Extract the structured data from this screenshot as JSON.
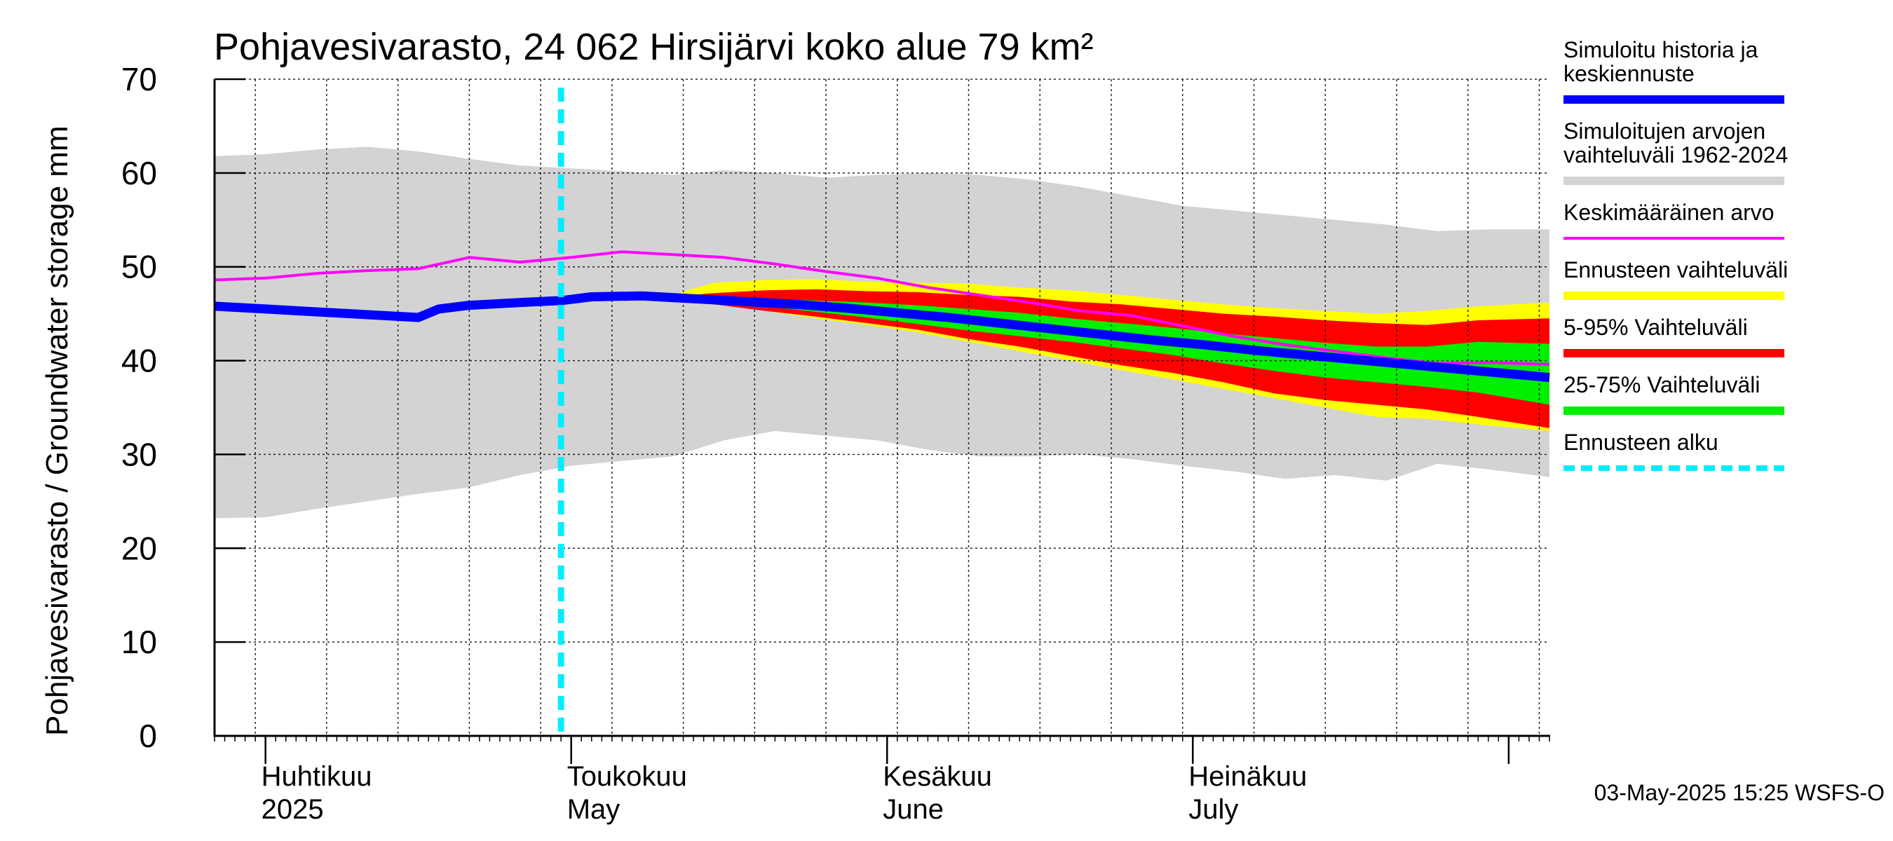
{
  "chart_data": {
    "type": "area",
    "title": "Pohjavesivarasto, 24 062 Hirsijärvi koko alue 79 km²",
    "ylabel": "Pohjavesivarasto / Groundwater storage   mm",
    "xlabel": "",
    "ylim": [
      0,
      70
    ],
    "y_ticks": [
      "0",
      "10",
      "20",
      "30",
      "40",
      "50",
      "60",
      "70"
    ],
    "x_range": [
      "2025-03-27",
      "2025-08-05"
    ],
    "grid": true,
    "legend_position": "right",
    "month_labels": [
      {
        "date": "2025-04-01",
        "fi": "Huhtikuu",
        "en": "2025"
      },
      {
        "date": "2025-05-01",
        "fi": "Toukokuu",
        "en": "May"
      },
      {
        "date": "2025-06-01",
        "fi": "Kesäkuu",
        "en": "June"
      },
      {
        "date": "2025-07-01",
        "fi": "Heinäkuu",
        "en": "July"
      }
    ],
    "forecast_start": "2025-04-30",
    "series": [
      {
        "name": "Simuloitujen arvojen vaihteluväli 1962-2024",
        "kind": "band",
        "color": "#d3d3d3",
        "x": [
          "2025-03-27",
          "2025-04-01",
          "2025-04-06",
          "2025-04-11",
          "2025-04-16",
          "2025-04-21",
          "2025-04-26",
          "2025-05-01",
          "2025-05-06",
          "2025-05-11",
          "2025-05-16",
          "2025-05-21",
          "2025-05-26",
          "2025-05-31",
          "2025-06-05",
          "2025-06-10",
          "2025-06-15",
          "2025-06-20",
          "2025-06-25",
          "2025-06-30",
          "2025-07-05",
          "2025-07-10",
          "2025-07-15",
          "2025-07-20",
          "2025-07-25",
          "2025-07-30",
          "2025-08-05"
        ],
        "lower": [
          23.2,
          23.3,
          24.2,
          25.0,
          25.8,
          26.5,
          27.8,
          28.8,
          29.3,
          29.8,
          31.5,
          32.5,
          32.0,
          31.5,
          30.5,
          29.8,
          29.8,
          30.0,
          29.5,
          28.8,
          28.2,
          27.4,
          27.8,
          27.2,
          29.0,
          28.4,
          27.6
        ],
        "upper": [
          61.8,
          62.0,
          62.5,
          62.8,
          62.3,
          61.5,
          60.8,
          60.5,
          60.2,
          59.8,
          60.3,
          60.0,
          59.5,
          59.8,
          60.0,
          59.8,
          59.3,
          58.5,
          57.5,
          56.5,
          56.0,
          55.5,
          55.0,
          54.5,
          53.8,
          54.0,
          54.0
        ]
      },
      {
        "name": "Ennusteen vaihteluväli",
        "kind": "band",
        "color": "#ffff00",
        "x": [
          "2025-05-10",
          "2025-05-15",
          "2025-05-20",
          "2025-05-25",
          "2025-05-30",
          "2025-06-04",
          "2025-06-09",
          "2025-06-14",
          "2025-06-19",
          "2025-06-24",
          "2025-06-29",
          "2025-07-04",
          "2025-07-09",
          "2025-07-14",
          "2025-07-19",
          "2025-07-24",
          "2025-07-29",
          "2025-08-05"
        ],
        "lower": [
          46.7,
          46.0,
          45.3,
          44.5,
          43.8,
          43.0,
          42.0,
          41.0,
          40.0,
          39.0,
          38.0,
          37.0,
          36.0,
          35.0,
          34.0,
          33.8,
          33.2,
          32.5
        ],
        "upper": [
          46.7,
          48.3,
          48.6,
          48.7,
          48.4,
          48.3,
          48.2,
          47.8,
          47.5,
          47.0,
          46.5,
          46.0,
          45.6,
          45.3,
          45.0,
          45.3,
          45.8,
          46.2
        ]
      },
      {
        "name": "5-95% Vaihteluväli",
        "kind": "band",
        "color": "#ff0000",
        "x": [
          "2025-05-10",
          "2025-05-15",
          "2025-05-20",
          "2025-05-25",
          "2025-05-30",
          "2025-06-04",
          "2025-06-09",
          "2025-06-14",
          "2025-06-19",
          "2025-06-24",
          "2025-06-29",
          "2025-07-04",
          "2025-07-09",
          "2025-07-14",
          "2025-07-19",
          "2025-07-24",
          "2025-07-29",
          "2025-08-05"
        ],
        "lower": [
          46.7,
          46.0,
          45.3,
          44.7,
          44.0,
          43.3,
          42.3,
          41.5,
          40.5,
          39.5,
          38.7,
          37.7,
          36.5,
          35.8,
          35.3,
          34.8,
          34.0,
          32.8
        ],
        "upper": [
          46.7,
          47.2,
          47.5,
          47.6,
          47.4,
          47.3,
          47.0,
          46.8,
          46.3,
          46.0,
          45.5,
          45.0,
          44.7,
          44.3,
          44.0,
          43.8,
          44.3,
          44.5
        ]
      },
      {
        "name": "25-75% Vaihteluväli",
        "kind": "band",
        "color": "#00ee00",
        "x": [
          "2025-05-10",
          "2025-05-15",
          "2025-05-20",
          "2025-05-25",
          "2025-05-30",
          "2025-06-04",
          "2025-06-09",
          "2025-06-14",
          "2025-06-19",
          "2025-06-24",
          "2025-06-29",
          "2025-07-04",
          "2025-07-09",
          "2025-07-14",
          "2025-07-19",
          "2025-07-24",
          "2025-07-29",
          "2025-08-05"
        ],
        "lower": [
          46.7,
          46.3,
          45.8,
          45.2,
          44.6,
          43.9,
          43.2,
          42.6,
          42.0,
          41.3,
          40.6,
          39.7,
          38.9,
          38.2,
          37.7,
          37.2,
          36.6,
          35.3
        ],
        "upper": [
          46.7,
          46.7,
          46.6,
          46.4,
          46.2,
          45.9,
          45.5,
          45.1,
          44.5,
          44.0,
          43.5,
          42.9,
          42.4,
          41.9,
          41.5,
          41.5,
          42.0,
          41.8
        ]
      },
      {
        "name": "Keskimääräinen arvo",
        "kind": "line",
        "color": "#ff00ff",
        "x": [
          "2025-03-27",
          "2025-04-01",
          "2025-04-06",
          "2025-04-11",
          "2025-04-16",
          "2025-04-21",
          "2025-04-26",
          "2025-05-01",
          "2025-05-06",
          "2025-05-11",
          "2025-05-16",
          "2025-05-21",
          "2025-05-26",
          "2025-05-31",
          "2025-06-05",
          "2025-06-10",
          "2025-06-15",
          "2025-06-20",
          "2025-06-25",
          "2025-06-30",
          "2025-07-05",
          "2025-07-10",
          "2025-07-15",
          "2025-07-20",
          "2025-07-25",
          "2025-07-30",
          "2025-08-05"
        ],
        "values": [
          48.6,
          48.8,
          49.3,
          49.6,
          49.8,
          51.0,
          50.5,
          51.0,
          51.6,
          51.3,
          51.0,
          50.3,
          49.5,
          48.8,
          47.8,
          47.0,
          46.2,
          45.3,
          44.8,
          43.7,
          42.6,
          41.7,
          41.0,
          40.3,
          39.7,
          39.8,
          39.6
        ]
      },
      {
        "name": "Simuloitu historia ja keskiennuste",
        "kind": "line",
        "color": "#0000ff",
        "x": [
          "2025-03-27",
          "2025-04-01",
          "2025-04-06",
          "2025-04-11",
          "2025-04-16",
          "2025-04-18",
          "2025-04-21",
          "2025-04-26",
          "2025-04-30",
          "2025-05-03",
          "2025-05-08",
          "2025-05-13",
          "2025-05-18",
          "2025-05-23",
          "2025-05-28",
          "2025-06-02",
          "2025-06-07",
          "2025-06-12",
          "2025-06-17",
          "2025-06-22",
          "2025-06-27",
          "2025-07-02",
          "2025-07-07",
          "2025-07-12",
          "2025-07-17",
          "2025-07-22",
          "2025-07-27",
          "2025-08-01",
          "2025-08-05"
        ],
        "values": [
          45.8,
          45.5,
          45.2,
          44.9,
          44.6,
          45.5,
          45.9,
          46.2,
          46.4,
          46.8,
          46.9,
          46.6,
          46.3,
          46.0,
          45.6,
          45.1,
          44.6,
          44.0,
          43.4,
          42.8,
          42.2,
          41.7,
          41.1,
          40.6,
          40.1,
          39.6,
          39.1,
          38.6,
          38.2
        ]
      }
    ]
  },
  "legend": [
    {
      "label": "Simuloitu historia ja keskiennuste",
      "color": "#0000ff",
      "style": "solid"
    },
    {
      "label": "Simuloitujen arvojen vaihteluväli 1962-2024",
      "color": "#d3d3d3",
      "style": "solid"
    },
    {
      "label": "Keskimääräinen arvo",
      "color": "#ff00ff",
      "style": "thin"
    },
    {
      "label": "Ennusteen vaihteluväli",
      "color": "#ffff00",
      "style": "solid"
    },
    {
      "label": "5-95% Vaihteluväli",
      "color": "#ff0000",
      "style": "solid"
    },
    {
      "label": "25-75% Vaihteluväli",
      "color": "#00ee00",
      "style": "solid"
    },
    {
      "label": "Ennusteen alku",
      "color": "#00eeff",
      "style": "dashed"
    }
  ],
  "footer": "03-May-2025 15:25 WSFS-O"
}
